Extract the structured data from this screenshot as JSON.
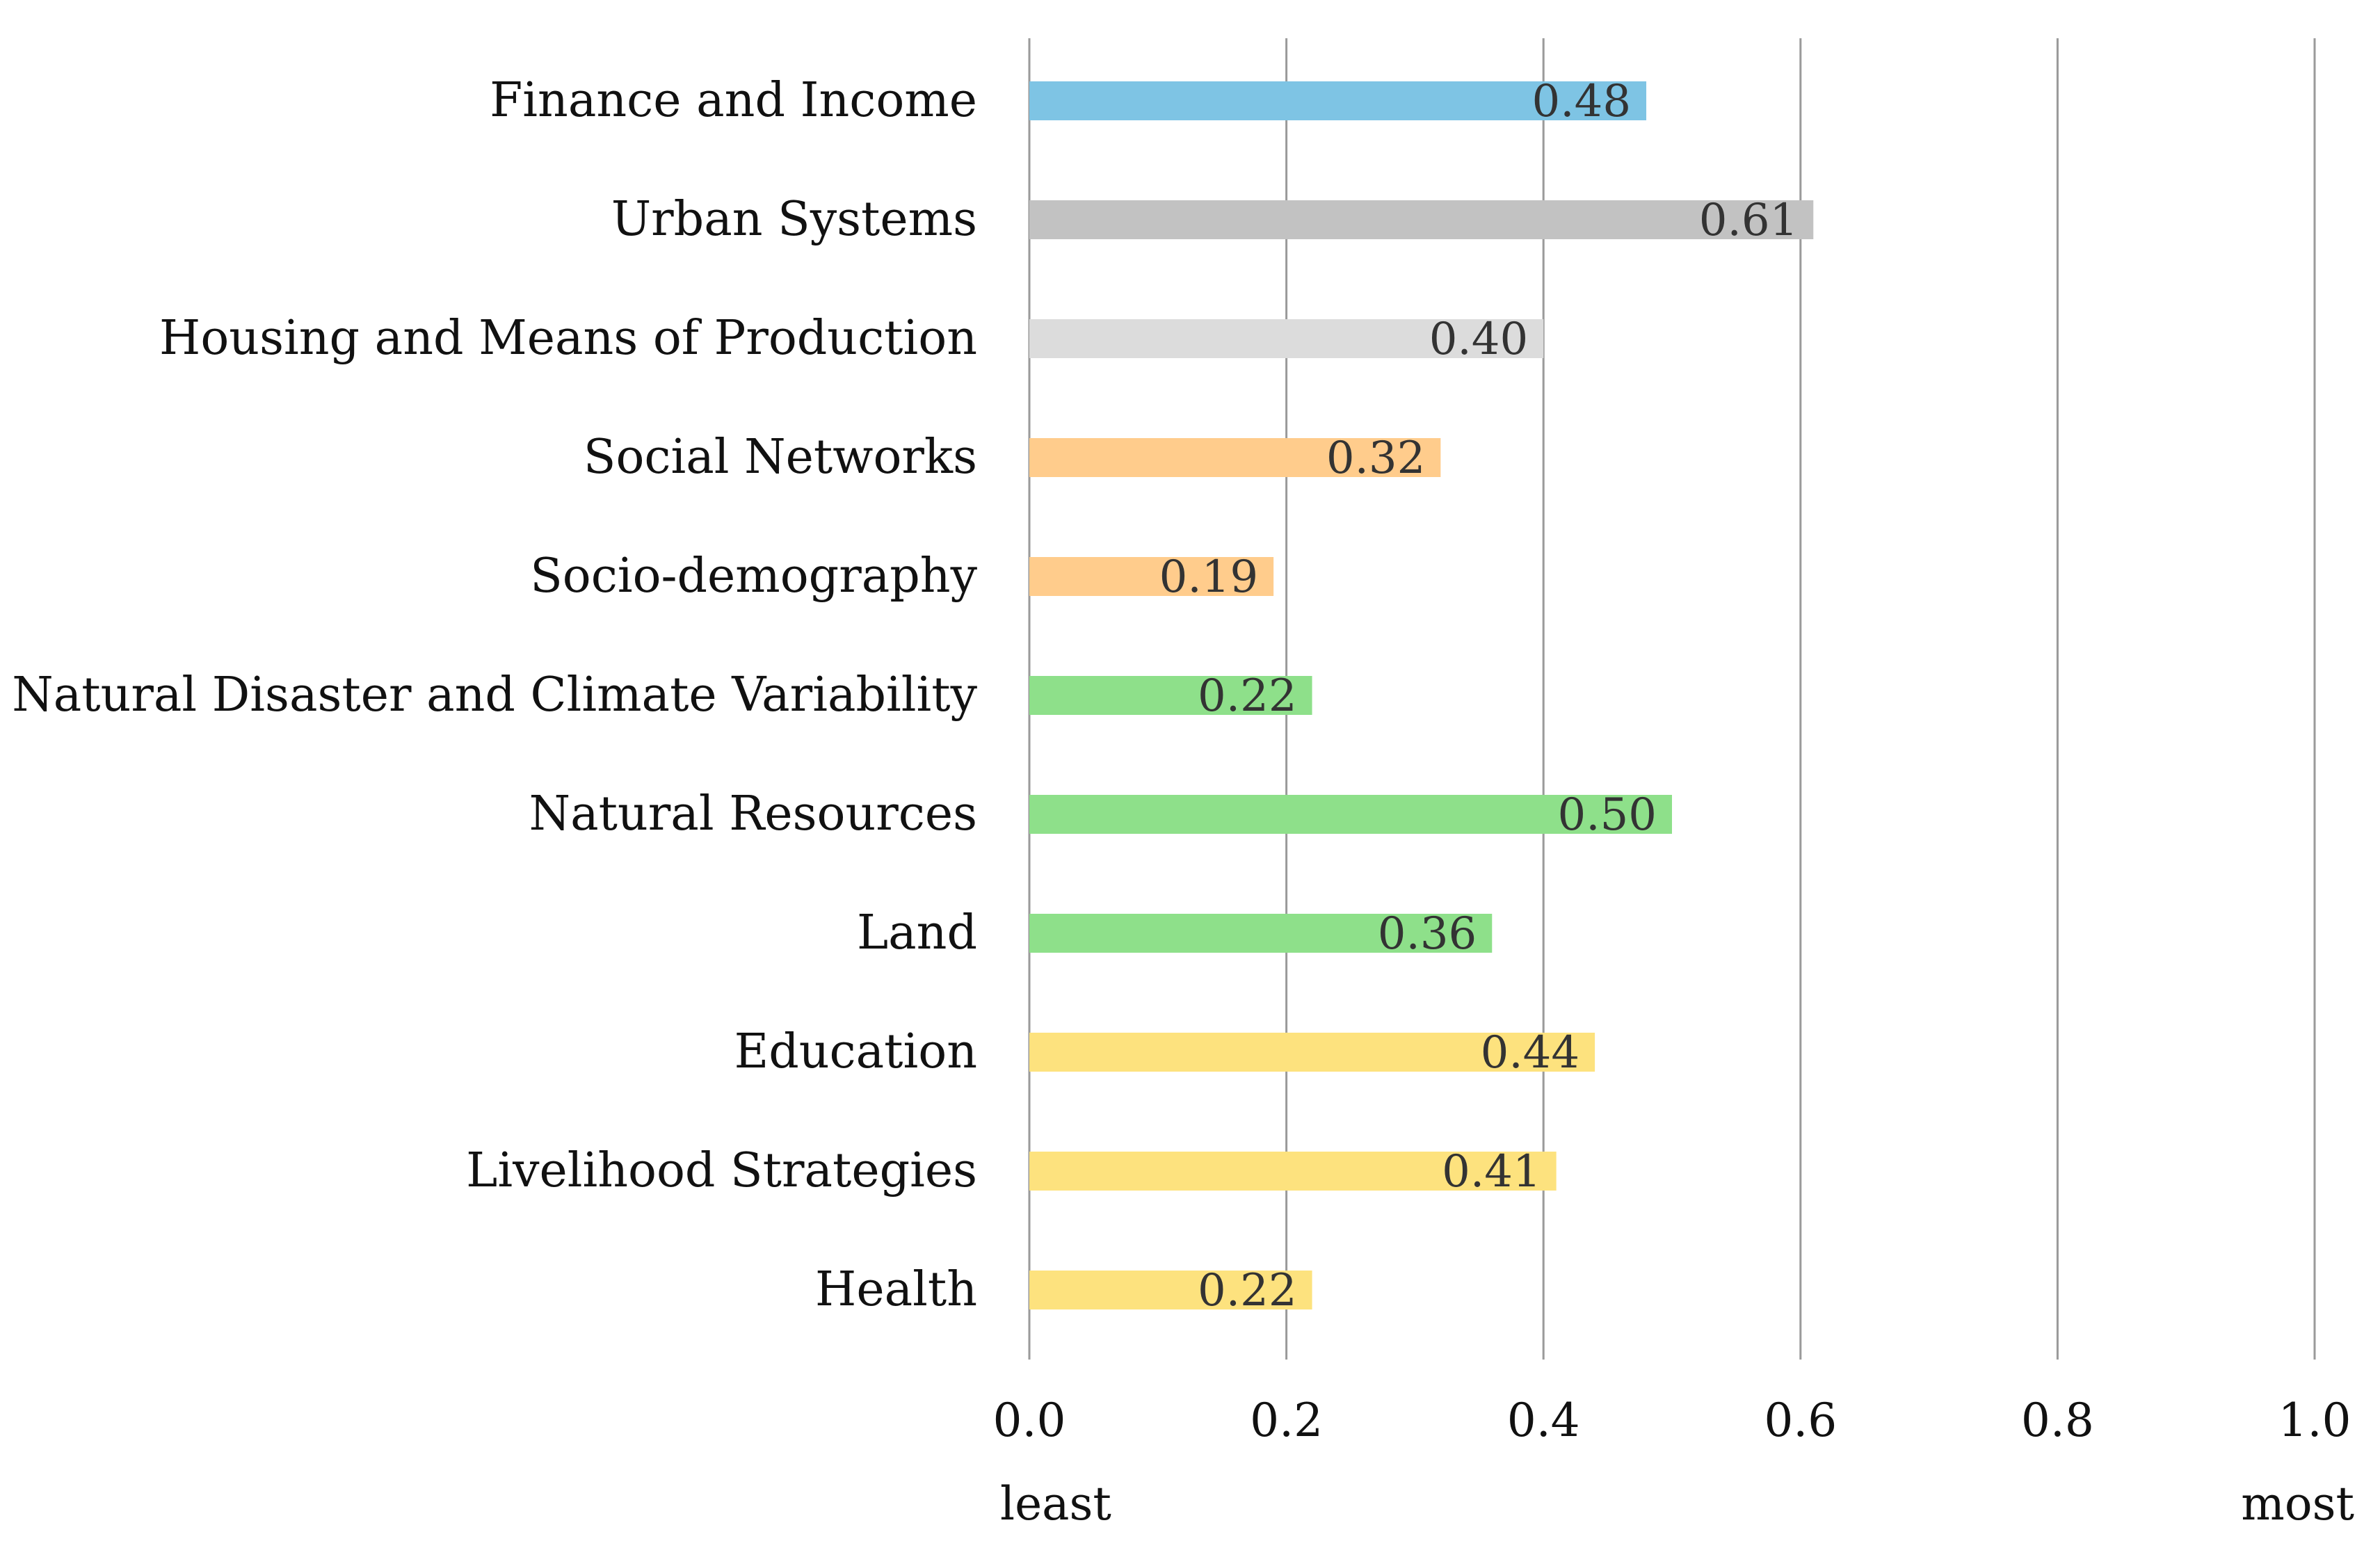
{
  "chart_data": {
    "type": "bar",
    "orientation": "horizontal",
    "categories": [
      "Finance and Income",
      "Urban Systems",
      "Housing and Means of Production",
      "Social Networks",
      "Socio-demography",
      "Natural Disaster and Climate Variability",
      "Natural Resources",
      "Land",
      "Education",
      "Livelihood Strategies",
      "Health"
    ],
    "values": [
      0.48,
      0.61,
      0.4,
      0.32,
      0.19,
      0.22,
      0.5,
      0.36,
      0.44,
      0.41,
      0.22
    ],
    "value_labels": [
      "0.48",
      "0.61",
      "0.40",
      "0.32",
      "0.19",
      "0.22",
      "0.50",
      "0.36",
      "0.44",
      "0.41",
      "0.22"
    ],
    "bar_colors": [
      "#7ec4e4",
      "#c2c2c2",
      "#dcdcdc",
      "#ffcc8c",
      "#ffcc8c",
      "#8ee08a",
      "#8ee08a",
      "#8ee08a",
      "#fde27e",
      "#fde27e",
      "#fde27e"
    ],
    "xlim": [
      0,
      1.0
    ],
    "xticks": [
      0.0,
      0.2,
      0.4,
      0.6,
      0.8,
      1.0
    ],
    "xtick_labels": [
      "0.0",
      "0.2",
      "0.4",
      "0.6",
      "0.8",
      "1.0"
    ],
    "grid": true,
    "axis_end_labels": {
      "left": "least",
      "right": "most"
    },
    "title": "",
    "xlabel": "",
    "ylabel": ""
  }
}
